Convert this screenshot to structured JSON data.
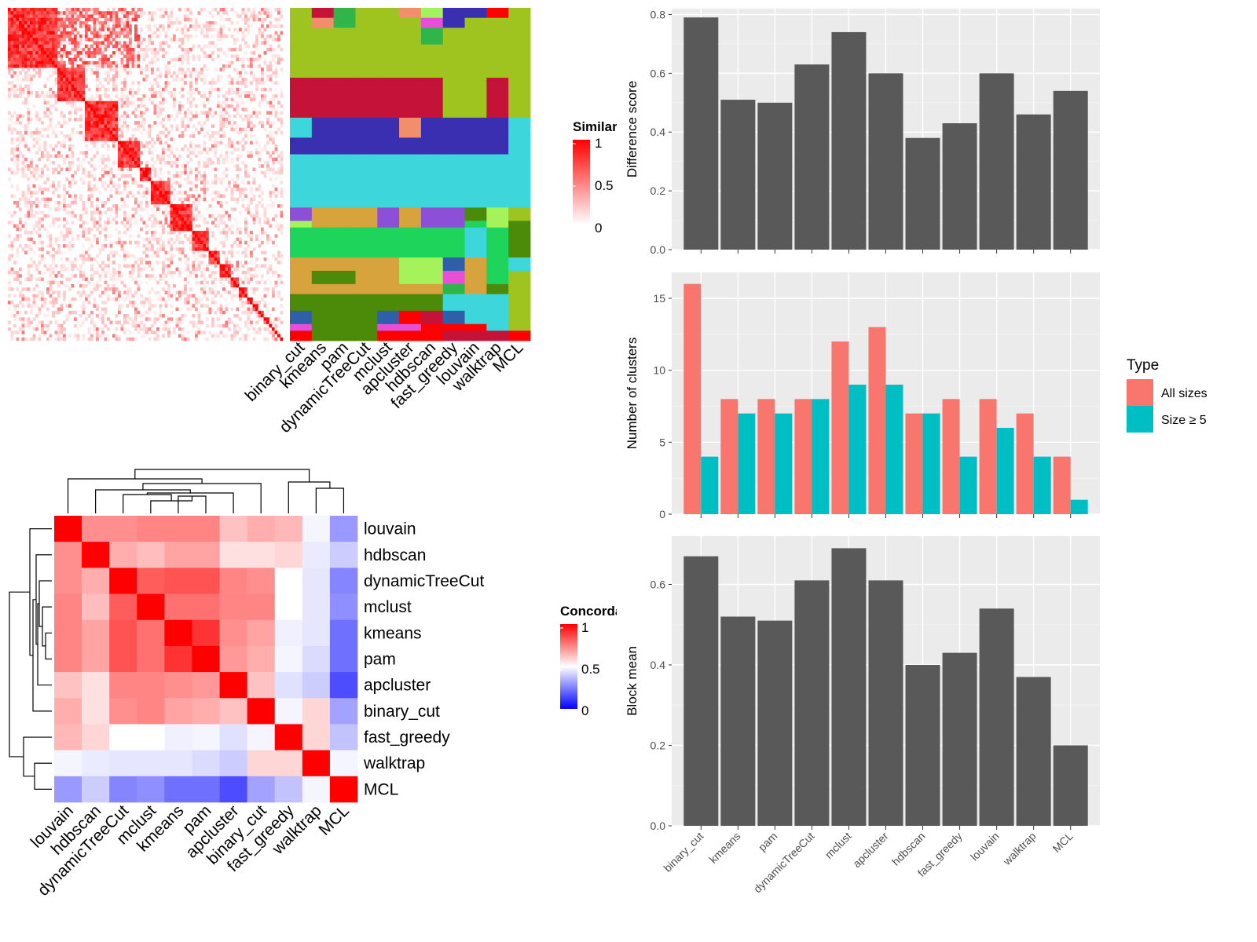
{
  "methods": [
    "binary_cut",
    "kmeans",
    "pam",
    "dynamicTreeCut",
    "mclust",
    "apcluster",
    "hdbscan",
    "fast_greedy",
    "louvain",
    "walktrap",
    "MCL"
  ],
  "similarity_legend": {
    "title": "Similarity",
    "ticks": [
      "1",
      "0.5",
      "0"
    ]
  },
  "concordance_legend": {
    "title": "Concordance",
    "ticks": [
      "1",
      "0.5",
      "0"
    ]
  },
  "colors": {
    "panel_bg": "#ebebeb",
    "bar": "#595959",
    "all_sizes": "#f8766d",
    "size_ge5": "#00bfc4",
    "heat_high": "#ff0000",
    "heat_mid": "#ffffff",
    "heat_low": "#0000ff",
    "cluster_palette": [
      "#9fc31f",
      "#c41239",
      "#3a2fb0",
      "#3dd6da",
      "#1fd45a",
      "#d6a33c",
      "#4c8a0a",
      "#f28e6b",
      "#8c4fd8",
      "#a6f25a",
      "#e64fd6",
      "#2e5fa8",
      "#2fb54a",
      "#ff0000"
    ]
  },
  "chart_data": [
    {
      "type": "heatmap",
      "name": "similarity-matrix",
      "legend_title": "Similarity",
      "scale": [
        0,
        1
      ],
      "legend_ticks": [
        0,
        0.5,
        1
      ],
      "n_terms": 100,
      "block_sizes": [
        18,
        10,
        12,
        8,
        4,
        7,
        8,
        6,
        4,
        4,
        3,
        3,
        2,
        2,
        2,
        2,
        1,
        1,
        1,
        1,
        1
      ],
      "note_pattern": "block diagonal"
    },
    {
      "type": "heatmap",
      "name": "cluster-assignment",
      "columns": [
        "binary_cut",
        "kmeans",
        "pam",
        "dynamicTreeCut",
        "mclust",
        "apcluster",
        "hdbscan",
        "fast_greedy",
        "louvain",
        "walktrap",
        "MCL"
      ]
    },
    {
      "type": "heatmap",
      "name": "concordance-matrix",
      "legend_title": "Concordance",
      "scale": [
        0,
        1
      ],
      "legend_ticks": [
        0,
        0.5,
        1
      ],
      "row_labels": [
        "louvain",
        "hdbscan",
        "dynamicTreeCut",
        "mclust",
        "kmeans",
        "pam",
        "apcluster",
        "binary_cut",
        "fast_greedy",
        "walktrap",
        "MCL"
      ],
      "col_labels": [
        "louvain",
        "hdbscan",
        "dynamicTreeCut",
        "mclust",
        "kmeans",
        "pam",
        "apcluster",
        "binary_cut",
        "fast_greedy",
        "walktrap",
        "MCL"
      ],
      "values": [
        [
          1.0,
          0.72,
          0.72,
          0.74,
          0.74,
          0.74,
          0.62,
          0.66,
          0.64,
          0.48,
          0.3
        ],
        [
          0.72,
          1.0,
          0.66,
          0.63,
          0.68,
          0.68,
          0.56,
          0.56,
          0.58,
          0.46,
          0.4
        ],
        [
          0.72,
          0.66,
          1.0,
          0.82,
          0.84,
          0.84,
          0.74,
          0.72,
          0.5,
          0.45,
          0.26
        ],
        [
          0.74,
          0.63,
          0.82,
          1.0,
          0.78,
          0.78,
          0.74,
          0.74,
          0.5,
          0.45,
          0.28
        ],
        [
          0.74,
          0.68,
          0.84,
          0.78,
          1.0,
          0.9,
          0.72,
          0.68,
          0.47,
          0.45,
          0.22
        ],
        [
          0.74,
          0.68,
          0.84,
          0.78,
          0.9,
          1.0,
          0.7,
          0.66,
          0.48,
          0.43,
          0.22
        ],
        [
          0.62,
          0.56,
          0.74,
          0.74,
          0.72,
          0.7,
          1.0,
          0.62,
          0.44,
          0.4,
          0.15
        ],
        [
          0.66,
          0.56,
          0.72,
          0.74,
          0.68,
          0.66,
          0.62,
          1.0,
          0.48,
          0.58,
          0.32
        ],
        [
          0.64,
          0.58,
          0.5,
          0.5,
          0.47,
          0.48,
          0.44,
          0.48,
          1.0,
          0.58,
          0.38
        ],
        [
          0.48,
          0.46,
          0.45,
          0.45,
          0.45,
          0.43,
          0.4,
          0.58,
          0.58,
          1.0,
          0.48
        ],
        [
          0.3,
          0.4,
          0.26,
          0.28,
          0.22,
          0.22,
          0.15,
          0.32,
          0.38,
          0.48,
          1.0
        ]
      ]
    },
    {
      "type": "bar",
      "name": "difference-score",
      "categories": [
        "binary_cut",
        "kmeans",
        "pam",
        "dynamicTreeCut",
        "mclust",
        "apcluster",
        "hdbscan",
        "fast_greedy",
        "louvain",
        "walktrap",
        "MCL"
      ],
      "values": [
        0.79,
        0.51,
        0.5,
        0.63,
        0.74,
        0.6,
        0.38,
        0.43,
        0.6,
        0.46,
        0.54
      ],
      "ylabel": "Difference score",
      "ylim": [
        0,
        0.82
      ],
      "yticks": [
        0.0,
        0.2,
        0.4,
        0.6,
        0.8
      ],
      "ytick_labels": [
        "0.0",
        "0.2",
        "0.4",
        "0.6",
        "0.8"
      ]
    },
    {
      "type": "bar",
      "name": "number-of-clusters",
      "categories": [
        "binary_cut",
        "kmeans",
        "pam",
        "dynamicTreeCut",
        "mclust",
        "apcluster",
        "hdbscan",
        "fast_greedy",
        "louvain",
        "walktrap",
        "MCL"
      ],
      "series": [
        {
          "name": "All sizes",
          "values": [
            16,
            8,
            8,
            8,
            12,
            13,
            7,
            8,
            8,
            7,
            4
          ]
        },
        {
          "name": "Size ≥ 5",
          "values": [
            4,
            7,
            7,
            8,
            9,
            9,
            7,
            4,
            6,
            4,
            1
          ]
        }
      ],
      "ylabel": "Number of clusters",
      "ylim": [
        0,
        16.8
      ],
      "yticks": [
        0,
        5,
        10,
        15
      ],
      "ytick_labels": [
        "0",
        "5",
        "10",
        "15"
      ],
      "legend": {
        "title": "Type",
        "position": "right"
      }
    },
    {
      "type": "bar",
      "name": "block-mean",
      "categories": [
        "binary_cut",
        "kmeans",
        "pam",
        "dynamicTreeCut",
        "mclust",
        "apcluster",
        "hdbscan",
        "fast_greedy",
        "louvain",
        "walktrap",
        "MCL"
      ],
      "values": [
        0.67,
        0.52,
        0.51,
        0.61,
        0.69,
        0.61,
        0.4,
        0.43,
        0.54,
        0.37,
        0.2
      ],
      "ylabel": "Block mean",
      "ylim": [
        0,
        0.72
      ],
      "yticks": [
        0.0,
        0.2,
        0.4,
        0.6
      ],
      "ytick_labels": [
        "0.0",
        "0.2",
        "0.4",
        "0.6"
      ]
    }
  ]
}
